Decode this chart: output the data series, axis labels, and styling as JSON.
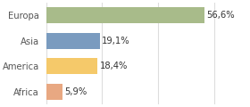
{
  "categories": [
    "Africa",
    "America",
    "Asia",
    "Europa"
  ],
  "values": [
    5.9,
    18.4,
    19.1,
    56.6
  ],
  "labels": [
    "5,9%",
    "18,4%",
    "19,1%",
    "56,6%"
  ],
  "colors": [
    "#e8a882",
    "#f5c96a",
    "#7a9bbf",
    "#a8bb8a"
  ],
  "xlim": [
    0,
    72
  ],
  "background_color": "#ffffff",
  "grid_color": "#dddddd",
  "label_fontsize": 7.2,
  "bar_height": 0.62,
  "tick_fontsize": 7.2
}
